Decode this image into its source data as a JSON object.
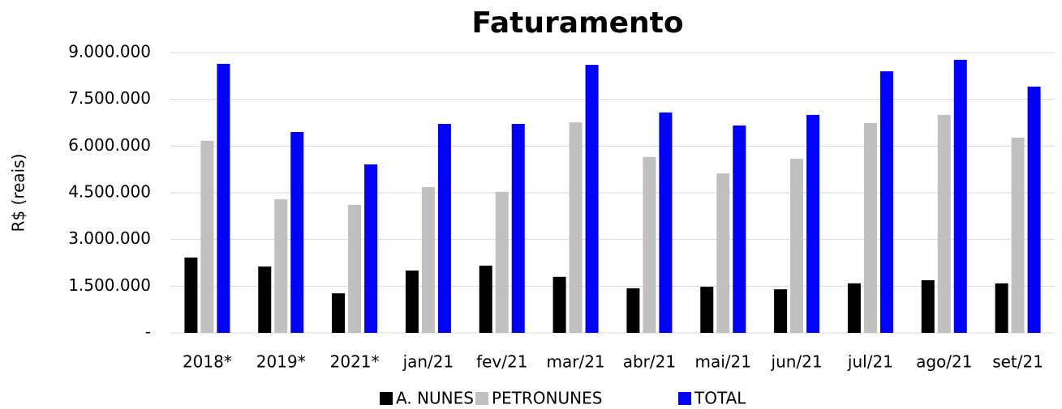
{
  "chart_data": {
    "type": "bar",
    "title": "Faturamento",
    "y_label": "R$ (reais)",
    "categories": [
      "2018*",
      "2019*",
      "2021*",
      "jan/21",
      "fev/21",
      "mar/21",
      "abr/21",
      "mai/21",
      "jun/21",
      "jul/21",
      "ago/21",
      "set/21"
    ],
    "series": [
      {
        "name": "A. NUNES",
        "color": "#000000",
        "values": [
          2420000,
          2130000,
          1270000,
          2000000,
          2160000,
          1800000,
          1430000,
          1480000,
          1400000,
          1590000,
          1690000,
          1590000
        ]
      },
      {
        "name": "PETRONUNES",
        "color": "#c0c0c0",
        "values": [
          6170000,
          4290000,
          4110000,
          4680000,
          4530000,
          6760000,
          5650000,
          5120000,
          5590000,
          6740000,
          7000000,
          6270000
        ]
      },
      {
        "name": "TOTAL",
        "color": "#0000ff",
        "values": [
          8640000,
          6450000,
          5410000,
          6710000,
          6710000,
          8610000,
          7080000,
          6660000,
          7000000,
          8400000,
          8770000,
          7910000
        ]
      }
    ],
    "ylim": [
      0,
      9000000
    ],
    "yticks": [
      {
        "value": 0,
        "label": "-"
      },
      {
        "value": 1500000,
        "label": "1.500.000"
      },
      {
        "value": 3000000,
        "label": "3.000.000"
      },
      {
        "value": 4500000,
        "label": "4.500.000"
      },
      {
        "value": 6000000,
        "label": "6.000.000"
      },
      {
        "value": 7500000,
        "label": "7.500.000"
      },
      {
        "value": 9000000,
        "label": "9.000.000"
      }
    ],
    "grid": true,
    "legend": "bottom"
  }
}
